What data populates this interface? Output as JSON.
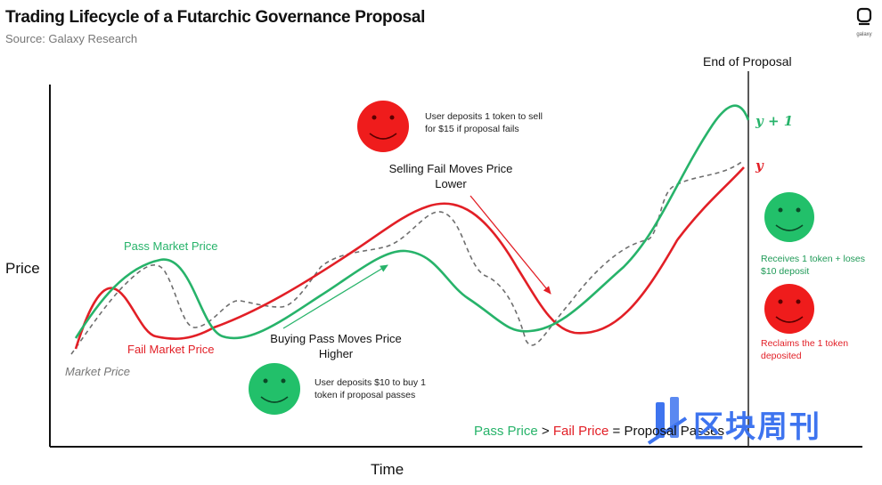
{
  "header": {
    "title": "Trading Lifecycle of a Futarchic Governance Proposal",
    "source": "Source: Galaxy Research",
    "logo_text": "galaxy"
  },
  "axes": {
    "y_label": "Price",
    "x_label": "Time"
  },
  "markers": {
    "end_of_proposal": "End of Proposal",
    "y_plus_1": "y + 1",
    "y": "y"
  },
  "curves": {
    "pass": {
      "label": "Pass Market Price",
      "color": "#27b36a"
    },
    "fail": {
      "label": "Fail Market Price",
      "color": "#e21f26"
    },
    "market": {
      "label": "Market Price",
      "color": "#777777"
    }
  },
  "annotations": {
    "sell_note": "User deposits 1 token to sell for $15 if proposal fails",
    "sell_caption": "Selling Fail Moves Price Lower",
    "buy_caption": "Buying Pass Moves Price Higher",
    "buy_note": "User deposits $10 to buy 1 token if proposal passes",
    "pass_outcome": "Receives 1 token + loses $10 deposit",
    "fail_outcome": "Reclaims the 1 token deposited"
  },
  "formula": {
    "pass": "Pass Price",
    "gt": ">",
    "fail": "Fail Price",
    "eq": "=",
    "result": "Proposal Passes"
  },
  "watermark": "区块周刊",
  "icons": [
    "sad-face-icon",
    "happy-face-icon",
    "galaxy-logo-icon"
  ]
}
